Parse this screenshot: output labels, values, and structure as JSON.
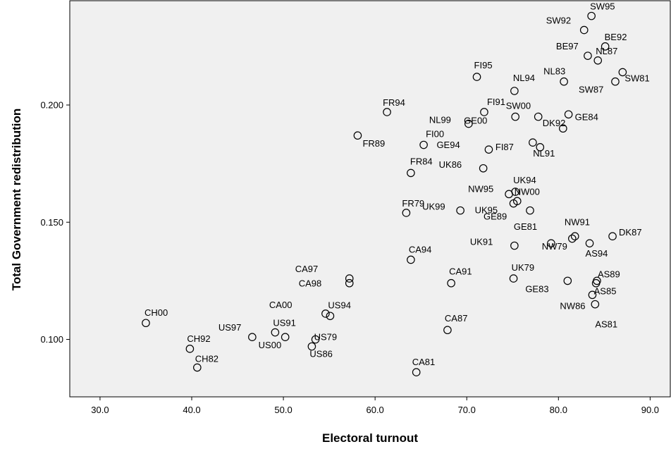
{
  "chart_data": {
    "type": "scatter",
    "xlabel": "Electoral turnout",
    "ylabel": "Total Government redistribution",
    "xlim": [
      26.7,
      92.2
    ],
    "ylim": [
      0.0755,
      0.2445
    ],
    "x_ticks": [
      "30.0",
      "40.0",
      "50.0",
      "60.0",
      "70.0",
      "80.0",
      "90.0"
    ],
    "x_tick_values": [
      30,
      40,
      50,
      60,
      70,
      80,
      90
    ],
    "y_ticks": [
      "0.100",
      "0.150",
      "0.200"
    ],
    "y_tick_values": [
      0.1,
      0.15,
      0.2
    ],
    "grid": false,
    "legend": "none",
    "colors": {
      "plot_background": "#f0f0f0",
      "marker": "#000000"
    },
    "points": [
      {
        "label": "SW95",
        "x": 83.6,
        "y": 0.238
      },
      {
        "label": "SW92",
        "x": 82.8,
        "y": 0.232
      },
      {
        "label": "BE92",
        "x": 85.1,
        "y": 0.225
      },
      {
        "label": "BE97",
        "x": 83.2,
        "y": 0.221
      },
      {
        "label": "NL87",
        "x": 84.3,
        "y": 0.219
      },
      {
        "label": "SW81",
        "x": 87.0,
        "y": 0.214
      },
      {
        "label": "NL83",
        "x": 80.6,
        "y": 0.21
      },
      {
        "label": "SW87",
        "x": 86.2,
        "y": 0.21
      },
      {
        "label": "FI95",
        "x": 71.1,
        "y": 0.212
      },
      {
        "label": "NL94",
        "x": 75.2,
        "y": 0.206
      },
      {
        "label": "FR94",
        "x": 61.3,
        "y": 0.197
      },
      {
        "label": "FI91",
        "x": 71.9,
        "y": 0.197
      },
      {
        "label": "SW00",
        "x": 77.8,
        "y": 0.195
      },
      {
        "label": "NL99",
        "x": 70.2,
        "y": 0.192
      },
      {
        "label": "GE00",
        "x": 75.3,
        "y": 0.195
      },
      {
        "label": "GE84",
        "x": 81.1,
        "y": 0.196
      },
      {
        "label": "FR89",
        "x": 58.1,
        "y": 0.187
      },
      {
        "label": "FI00",
        "x": 65.3,
        "y": 0.183
      },
      {
        "label": "DK92",
        "x": 80.5,
        "y": 0.19
      },
      {
        "label": "GE94",
        "x": 72.4,
        "y": 0.181
      },
      {
        "label": "FI87",
        "x": 77.2,
        "y": 0.184
      },
      {
        "label": "NL91",
        "x": 78.0,
        "y": 0.182
      },
      {
        "label": "FR84",
        "x": 63.9,
        "y": 0.171
      },
      {
        "label": "UK86",
        "x": 71.8,
        "y": 0.173
      },
      {
        "label": "NW95",
        "x": 74.6,
        "y": 0.162
      },
      {
        "label": "UK94",
        "x": 75.3,
        "y": 0.163
      },
      {
        "label": "UK99",
        "x": 69.3,
        "y": 0.155
      },
      {
        "label": "FR79",
        "x": 63.4,
        "y": 0.154
      },
      {
        "label": "UK95",
        "x": 75.1,
        "y": 0.158
      },
      {
        "label": "NW00",
        "x": 75.5,
        "y": 0.159
      },
      {
        "label": "GE89",
        "x": 76.9,
        "y": 0.155
      },
      {
        "label": "CA94",
        "x": 63.9,
        "y": 0.134
      },
      {
        "label": "UK91",
        "x": 75.2,
        "y": 0.14
      },
      {
        "label": "GE81",
        "x": 79.2,
        "y": 0.141
      },
      {
        "label": "NW91",
        "x": 81.5,
        "y": 0.143
      },
      {
        "label": "NW79",
        "x": 81.8,
        "y": 0.144
      },
      {
        "label": "AS94",
        "x": 83.4,
        "y": 0.141
      },
      {
        "label": "DK87",
        "x": 85.9,
        "y": 0.144
      },
      {
        "label": "CA97",
        "x": 57.2,
        "y": 0.126
      },
      {
        "label": "CA98",
        "x": 57.2,
        "y": 0.124
      },
      {
        "label": "CA91",
        "x": 68.3,
        "y": 0.124
      },
      {
        "label": "UK79",
        "x": 75.1,
        "y": 0.126
      },
      {
        "label": "GE83",
        "x": 81.0,
        "y": 0.125
      },
      {
        "label": "AS89",
        "x": 84.2,
        "y": 0.125
      },
      {
        "label": "AS85",
        "x": 84.1,
        "y": 0.124
      },
      {
        "label": "NW86",
        "x": 83.7,
        "y": 0.119
      },
      {
        "label": "AS81",
        "x": 84.0,
        "y": 0.115
      },
      {
        "label": "CA00",
        "x": 54.6,
        "y": 0.111
      },
      {
        "label": "US94",
        "x": 55.1,
        "y": 0.11
      },
      {
        "label": "CH00",
        "x": 35.0,
        "y": 0.107
      },
      {
        "label": "US97",
        "x": 46.6,
        "y": 0.101
      },
      {
        "label": "US91",
        "x": 49.1,
        "y": 0.103
      },
      {
        "label": "US00",
        "x": 50.2,
        "y": 0.101
      },
      {
        "label": "US79",
        "x": 53.5,
        "y": 0.1
      },
      {
        "label": "US86",
        "x": 53.1,
        "y": 0.097
      },
      {
        "label": "CH92",
        "x": 39.8,
        "y": 0.096
      },
      {
        "label": "CH82",
        "x": 40.6,
        "y": 0.088
      },
      {
        "label": "CA87",
        "x": 67.9,
        "y": 0.104
      },
      {
        "label": "CA81",
        "x": 64.5,
        "y": 0.086
      }
    ]
  }
}
